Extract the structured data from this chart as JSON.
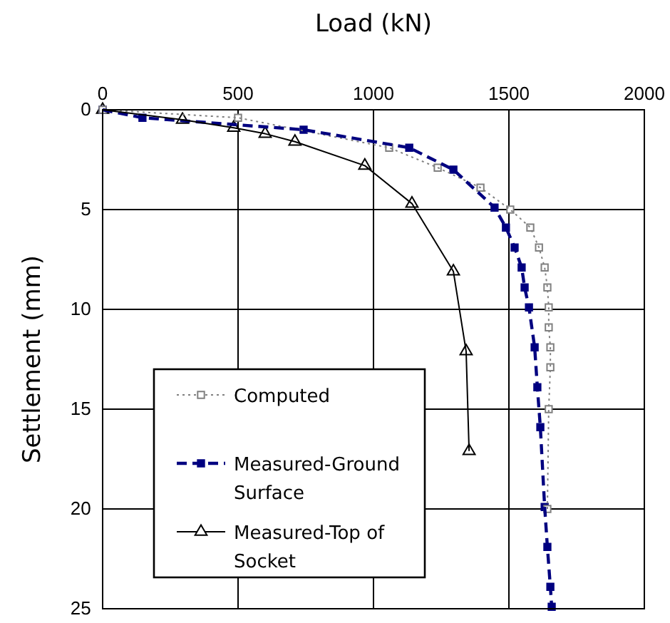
{
  "chart_data": {
    "type": "line",
    "xlabel": "Load (kN)",
    "ylabel": "Settlement (mm)",
    "xlim": [
      0,
      2000
    ],
    "xticks": [
      0,
      500,
      1000,
      1500,
      2000
    ],
    "ylim": [
      25,
      0
    ],
    "yticks": [
      0,
      5,
      10,
      15,
      20,
      25
    ],
    "grid": true,
    "legend": "bottom left",
    "series": [
      {
        "name": "Computed",
        "color": "#808080",
        "marker": "square",
        "line_style": "dotted",
        "x": [
          0,
          500,
          1058,
          1237,
          1395,
          1505,
          1579,
          1611,
          1632,
          1642,
          1647,
          1647,
          1653,
          1653,
          1647,
          1642
        ],
        "values": [
          0,
          0.4,
          1.9,
          2.9,
          3.9,
          5.0,
          5.9,
          6.9,
          7.9,
          8.9,
          9.9,
          10.9,
          11.9,
          12.9,
          15.0,
          20.0
        ]
      },
      {
        "name": "Measured-Ground Surface",
        "color": "#000080",
        "marker": "square",
        "line_style": "dashed",
        "x": [
          0,
          147,
          742,
          1132,
          1295,
          1447,
          1489,
          1521,
          1547,
          1558,
          1574,
          1595,
          1605,
          1616,
          1632,
          1642,
          1653,
          1658
        ],
        "values": [
          0,
          0.4,
          1.0,
          1.9,
          3.0,
          4.9,
          5.9,
          6.9,
          7.9,
          8.9,
          9.9,
          11.9,
          13.9,
          15.9,
          19.9,
          21.9,
          23.9,
          24.9
        ]
      },
      {
        "name": "Measured-Top of Socket",
        "color": "#000000",
        "marker": "triangle",
        "line_style": "solid",
        "x": [
          0,
          295,
          484,
          600,
          710,
          968,
          1142,
          1295,
          1342,
          1353
        ],
        "values": [
          0,
          0.5,
          0.9,
          1.2,
          1.6,
          2.8,
          4.7,
          8.1,
          12.1,
          17.1
        ]
      }
    ]
  }
}
